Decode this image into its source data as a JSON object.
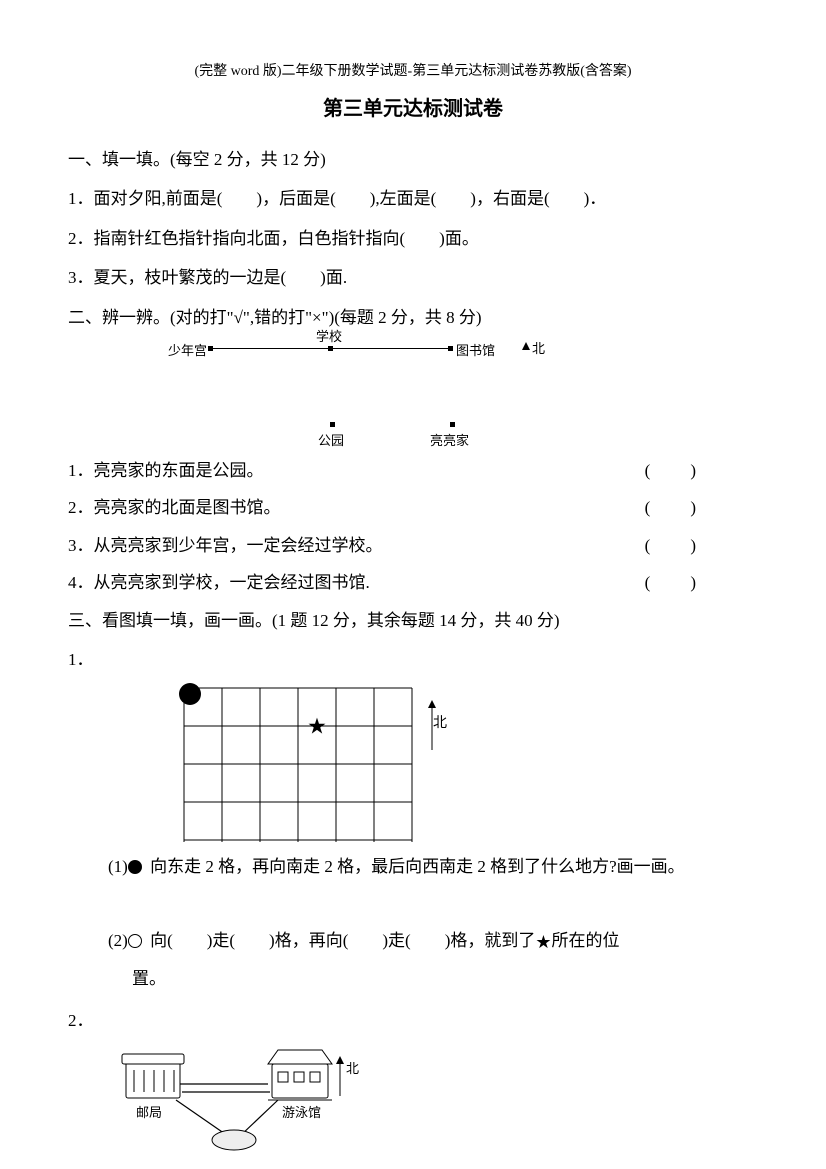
{
  "header_note": "(完整 word 版)二年级下册数学试题-第三单元达标测试卷苏教版(含答案)",
  "title": "第三单元达标测试卷",
  "section1": {
    "heading": "一、填一填。(每空 2 分，共 12 分)",
    "q1": "1．面对夕阳,前面是(　　)，后面是(　　),左面是(　　)，右面是(　　)．",
    "q2": "2．指南针红色指针指向北面，白色指针指向(　　)面。",
    "q3": "3．夏天，枝叶繁茂的一边是(　　)面."
  },
  "section2": {
    "heading": "二、辨一辨。(对的打\"√\",错的打\"×\")(每题 2 分，共 8 分)",
    "map": {
      "labels": [
        "少年宫",
        "学校",
        "图书馆"
      ],
      "north": "北",
      "row2": [
        "公园",
        "亮亮家"
      ]
    },
    "items": [
      "1．亮亮家的东面是公园。",
      "2．亮亮家的北面是图书馆。",
      "3．从亮亮家到少年宫，一定会经过学校。",
      "4．从亮亮家到学校，一定会经过图书馆."
    ],
    "paren": "(　　)"
  },
  "section3": {
    "heading": "三、看图填一填，画一画。(1 题 12 分，其余每题 14 分，共 40 分)",
    "q1_label": "1．",
    "grid": {
      "cols": 6,
      "rows": 5,
      "cell": 38,
      "north": "北",
      "black_circle": {
        "col": 0,
        "row": 0
      },
      "star": {
        "col": 3,
        "row": 1
      },
      "white_circle": {
        "col": 5,
        "row": 4
      }
    },
    "sub1": "(1)　 向东走 2 格，再向南走 2 格，最后向西南走 2 格到了什么地方?画一画。",
    "sub2_a": "(2)　 向(　　)走(　　)格，再向(　　)走(　　)格，就到了　所在的位",
    "sub2_b": "置。",
    "q2_label": "2．",
    "buildings": {
      "post": "邮局",
      "pool": "游泳馆",
      "north": "北"
    }
  }
}
